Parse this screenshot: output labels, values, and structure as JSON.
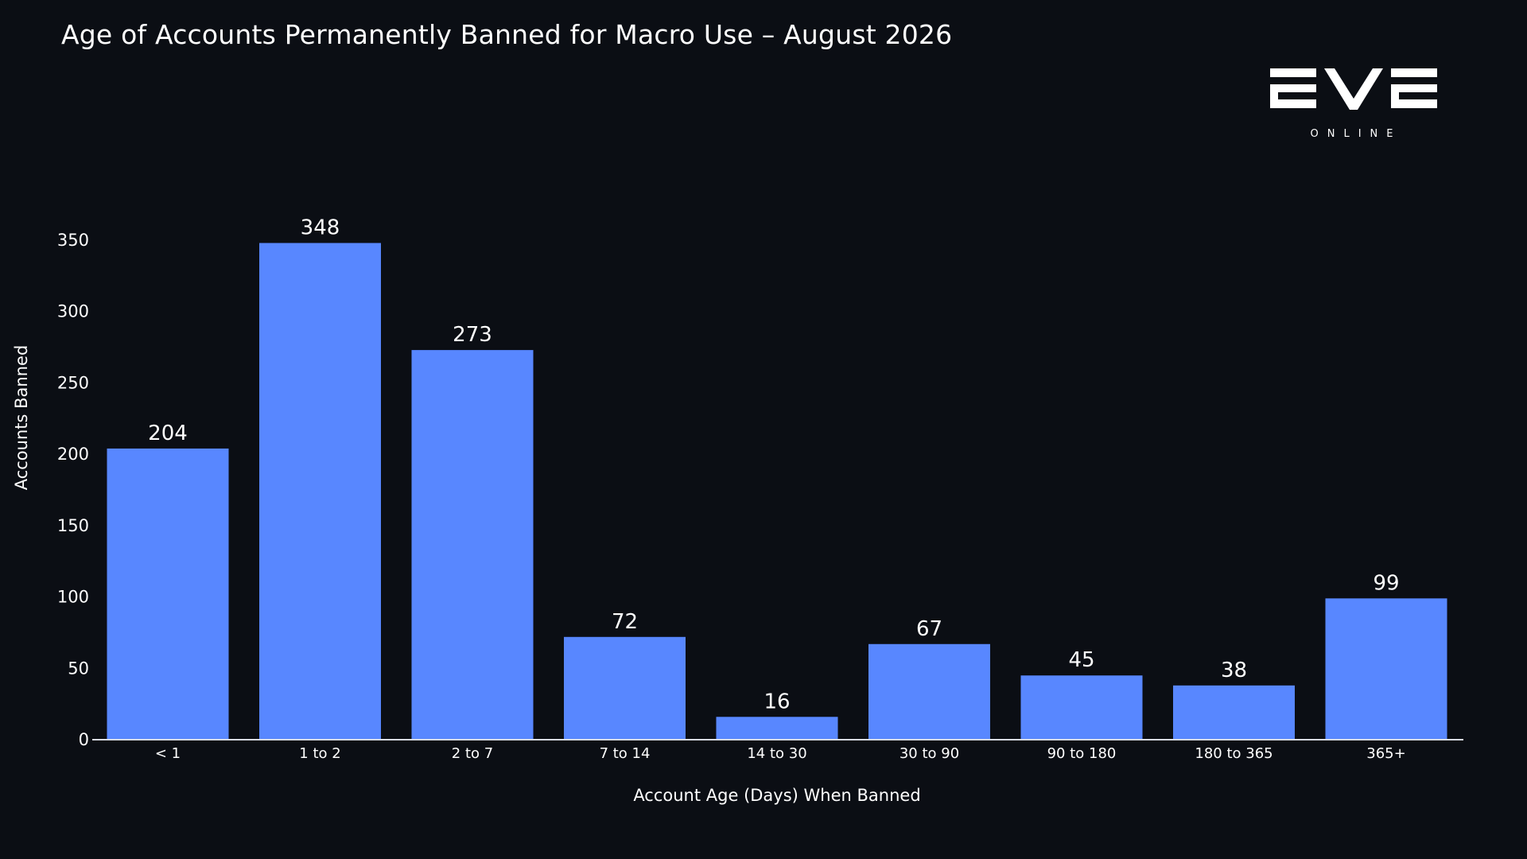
{
  "logo": {
    "icon": "eve-online-logo",
    "wordmark": "EVE",
    "subtitle": "ONLINE"
  },
  "colors": {
    "background": "#0b0e14",
    "bar": "#5887ff",
    "text": "#ffffff",
    "axis": "#d8dbe2"
  },
  "chart_data": {
    "type": "bar",
    "title": "Age of Accounts Permanently Banned for Macro Use – August 2026",
    "xlabel": "Account Age (Days) When Banned",
    "ylabel": "Accounts Banned",
    "categories": [
      "< 1",
      "1 to 2",
      "2 to 7",
      "7 to 14",
      "14 to 30",
      "30 to 90",
      "90 to 180",
      "180 to 365",
      "365+"
    ],
    "values": [
      204,
      348,
      273,
      72,
      16,
      67,
      45,
      38,
      99
    ],
    "data_labels": [
      "204",
      "348",
      "273",
      "72",
      "16",
      "67",
      "45",
      "38",
      "99"
    ],
    "yticks": [
      0,
      50,
      100,
      150,
      200,
      250,
      300,
      350
    ],
    "ytick_labels": [
      "0",
      "50",
      "100",
      "150",
      "200",
      "250",
      "300",
      "350"
    ],
    "ylim": [
      0,
      365
    ],
    "grid": false,
    "legend": "none"
  }
}
